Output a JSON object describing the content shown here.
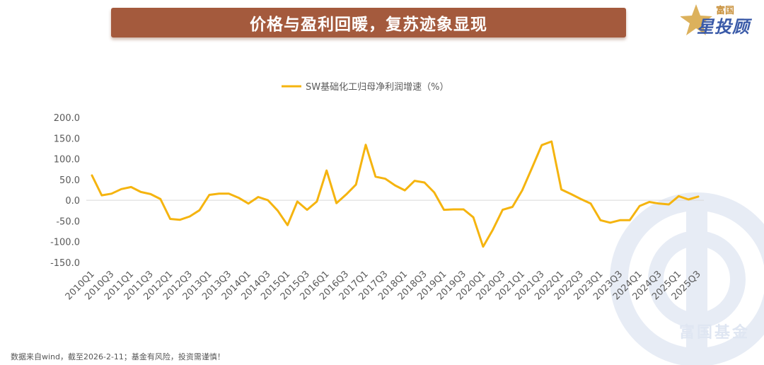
{
  "banner": {
    "title": "价格与盈利回暖，复苏迹象显现"
  },
  "logo": {
    "top": "富国",
    "main": "星投顾"
  },
  "watermark": {
    "text": "富国基金"
  },
  "footer": {
    "note": "数据来自wind，截至2026-2-11；基金有风险，投资需谨慎！"
  },
  "colors": {
    "series": "#f5b40f",
    "banner": "#a45a3d",
    "logo_blue": "#3a5aa8",
    "logo_gold": "#c8903a"
  },
  "chart_data": {
    "type": "line",
    "title": "",
    "legend_position": "top-center",
    "grid": false,
    "ylim": [
      -150,
      200
    ],
    "yticks": [
      "200.0",
      "150.0",
      "100.0",
      "50.0",
      "0.0",
      "-50.0",
      "-100.0",
      "-150.0"
    ],
    "x_tick_labels": [
      "2010Q1",
      "2010Q3",
      "2011Q1",
      "2011Q3",
      "2012Q1",
      "2012Q3",
      "2013Q1",
      "2013Q3",
      "2014Q1",
      "2014Q3",
      "2015Q1",
      "2015Q3",
      "2016Q1",
      "2016Q3",
      "2017Q1",
      "2017Q3",
      "2018Q1",
      "2018Q3",
      "2019Q1",
      "2019Q3",
      "2020Q1",
      "2020Q3",
      "2021Q1",
      "2021Q3",
      "2022Q1",
      "2022Q3",
      "2023Q1",
      "2023Q3",
      "2024Q1",
      "2024Q3",
      "2025Q1",
      "2025Q3"
    ],
    "x": [
      "2010Q1",
      "2010Q2",
      "2010Q3",
      "2010Q4",
      "2011Q1",
      "2011Q2",
      "2011Q3",
      "2011Q4",
      "2012Q1",
      "2012Q2",
      "2012Q3",
      "2012Q4",
      "2013Q1",
      "2013Q2",
      "2013Q3",
      "2013Q4",
      "2014Q1",
      "2014Q2",
      "2014Q3",
      "2014Q4",
      "2015Q1",
      "2015Q2",
      "2015Q3",
      "2015Q4",
      "2016Q1",
      "2016Q2",
      "2016Q3",
      "2016Q4",
      "2017Q1",
      "2017Q2",
      "2017Q3",
      "2017Q4",
      "2018Q1",
      "2018Q2",
      "2018Q3",
      "2018Q4",
      "2019Q1",
      "2019Q2",
      "2019Q3",
      "2019Q4",
      "2020Q1",
      "2020Q2",
      "2020Q3",
      "2020Q4",
      "2021Q1",
      "2021Q2",
      "2021Q3",
      "2021Q4",
      "2022Q1",
      "2022Q2",
      "2022Q3",
      "2022Q4",
      "2023Q1",
      "2023Q2",
      "2023Q3",
      "2023Q4",
      "2024Q1",
      "2024Q2",
      "2024Q3",
      "2024Q4",
      "2025Q1",
      "2025Q2",
      "2025Q3"
    ],
    "series": [
      {
        "name": "SW基础化工归母净利润增速（%）",
        "color": "#f5b40f",
        "values": [
          60,
          12,
          16,
          27,
          32,
          20,
          15,
          3,
          -45,
          -47,
          -39,
          -24,
          13,
          16,
          16,
          6,
          -8,
          8,
          0,
          -25,
          -60,
          -3,
          -23,
          -3,
          72,
          -7,
          14,
          38,
          134,
          57,
          52,
          36,
          24,
          47,
          43,
          19,
          -23,
          -22,
          -22,
          -41,
          -112,
          -71,
          -23,
          -16,
          24,
          78,
          133,
          142,
          26,
          15,
          3,
          -8,
          -48,
          -54,
          -48,
          -48,
          -14,
          -4,
          -8,
          -10,
          10,
          2,
          9
        ]
      }
    ]
  }
}
